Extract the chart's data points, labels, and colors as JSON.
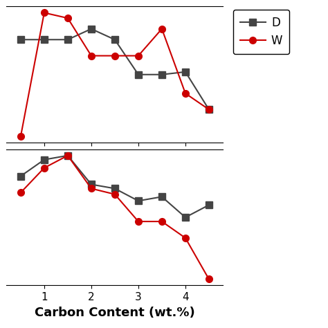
{
  "x": [
    0.5,
    1.0,
    1.5,
    2.0,
    2.5,
    3.0,
    3.5,
    4.0,
    4.5
  ],
  "dry_top": [
    3.18,
    3.18,
    3.18,
    3.22,
    3.18,
    3.05,
    3.05,
    3.06,
    2.92
  ],
  "wet_top": [
    2.82,
    3.28,
    3.26,
    3.12,
    3.12,
    3.12,
    3.22,
    2.98,
    2.92
  ],
  "dry_bottom": [
    3.2,
    3.4,
    3.45,
    3.1,
    3.05,
    2.9,
    2.95,
    2.7,
    2.85
  ],
  "wet_bottom": [
    3.0,
    3.3,
    3.45,
    3.05,
    2.98,
    2.65,
    2.65,
    2.45,
    1.95
  ],
  "dry_color": "#444444",
  "wet_color": "#cc0000",
  "dry_label": "D",
  "wet_label": "W",
  "xlabel": "Carbon Content (wt.%)",
  "xlabel_fontsize": 13,
  "tick_fontsize": 11,
  "legend_fontsize": 12,
  "marker_size": 7,
  "line_width": 1.5
}
